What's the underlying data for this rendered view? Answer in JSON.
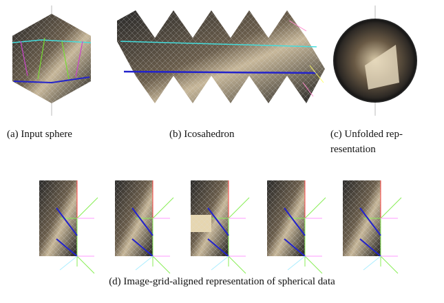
{
  "figure": {
    "panels": [
      {
        "caption": "(a) Input sphere"
      },
      {
        "caption": "(b) Icosahedron"
      },
      {
        "caption_lines": [
          "(c) Unfolded rep-",
          "resentation"
        ]
      },
      {
        "caption": "(d) Image-grid-aligned representation of spherical data"
      }
    ]
  }
}
